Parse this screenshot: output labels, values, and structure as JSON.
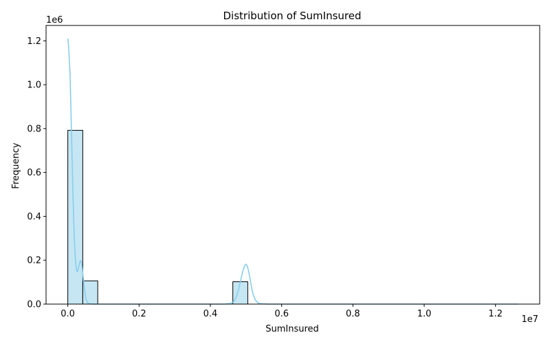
{
  "chart_data": {
    "type": "bar",
    "title": "Distribution of SumInsured",
    "xlabel": "SumInsured",
    "ylabel": "Frequency",
    "x_offset_label": "1e7",
    "y_offset_label": "1e6",
    "xlim": [
      -0.061,
      1.324
    ],
    "ylim": [
      0,
      1.27
    ],
    "x_ticks": [
      0.0,
      0.2,
      0.4,
      0.6,
      0.8,
      1.0,
      1.2
    ],
    "x_tick_labels": [
      "0.0",
      "0.2",
      "0.4",
      "0.6",
      "0.8",
      "1.0",
      "1.2"
    ],
    "y_ticks": [
      0.0,
      0.2,
      0.4,
      0.6,
      0.8,
      1.0,
      1.2
    ],
    "y_tick_labels": [
      "0.0",
      "0.2",
      "0.4",
      "0.6",
      "0.8",
      "1.0",
      "1.2"
    ],
    "grid": false,
    "bins": [
      {
        "start": 0.0,
        "end": 0.042,
        "count": 0.792
      },
      {
        "start": 0.042,
        "end": 0.084,
        "count": 0.106
      },
      {
        "start": 0.463,
        "end": 0.505,
        "count": 0.102
      }
    ],
    "kde": {
      "x": [
        0.0,
        0.002,
        0.004,
        0.006,
        0.008,
        0.01,
        0.012,
        0.014,
        0.016,
        0.018,
        0.02,
        0.022,
        0.024,
        0.026,
        0.028,
        0.03,
        0.032,
        0.034,
        0.036,
        0.038,
        0.04,
        0.042,
        0.044,
        0.046,
        0.048,
        0.05,
        0.052,
        0.054,
        0.056,
        0.058,
        0.06,
        0.064,
        0.068,
        0.072,
        0.076,
        0.08,
        0.085,
        0.09,
        0.1,
        0.15,
        0.2,
        0.3,
        0.4,
        0.44,
        0.455,
        0.465,
        0.472,
        0.478,
        0.484,
        0.488,
        0.492,
        0.496,
        0.5,
        0.504,
        0.508,
        0.512,
        0.516,
        0.52,
        0.526,
        0.532,
        0.54,
        0.56,
        0.6,
        0.8,
        1.0,
        1.2,
        1.264
      ],
      "y": [
        1.21,
        1.18,
        1.12,
        1.06,
        0.94,
        0.81,
        0.67,
        0.53,
        0.41,
        0.31,
        0.24,
        0.19,
        0.16,
        0.148,
        0.152,
        0.165,
        0.18,
        0.192,
        0.198,
        0.19,
        0.17,
        0.14,
        0.108,
        0.078,
        0.052,
        0.032,
        0.019,
        0.011,
        0.006,
        0.003,
        0.0015,
        0.0008,
        0.0005,
        0.0003,
        0.0002,
        0.0001,
        5e-05,
        0.0,
        0.0,
        0.0,
        0.0,
        0.0,
        0.0,
        0.0003,
        0.002,
        0.01,
        0.03,
        0.06,
        0.1,
        0.13,
        0.155,
        0.175,
        0.182,
        0.172,
        0.145,
        0.11,
        0.073,
        0.043,
        0.02,
        0.007,
        0.002,
        0.0002,
        0.0,
        0.0,
        0.0,
        0.0,
        0.0
      ]
    },
    "colors": {
      "bar_fill": "#c6e6f3",
      "bar_edge": "#000000",
      "kde_line": "#87ceeb",
      "axis": "#000000"
    }
  }
}
